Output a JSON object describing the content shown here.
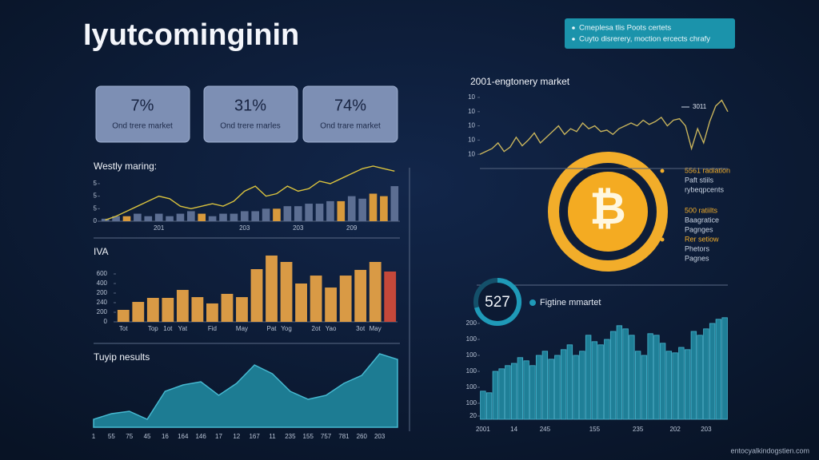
{
  "header": {
    "title": "Iyutcominginin",
    "notes": [
      "Cmeplesa tlis Poots certets",
      "Cuyto disrerery, moction ercects chrafy"
    ]
  },
  "kpis": [
    {
      "value": "7%",
      "label": "Ond trere market"
    },
    {
      "value": "31%",
      "label": "Ond trere rnarles"
    },
    {
      "value": "74%",
      "label": "Ond trare market"
    }
  ],
  "bitcoin": {
    "symbol": "₿",
    "notes": [
      {
        "title": "5561 radiation",
        "lines": [
          "Paft stiils",
          "rybeqpcents"
        ]
      },
      {
        "title": "500 ratiilts",
        "lines": [
          "Baagratice",
          "Pagnges"
        ]
      },
      {
        "title": "Rer setiow",
        "lines": [
          "Phetors",
          "Pagnes"
        ]
      }
    ]
  },
  "badge": {
    "value": "527",
    "label": "Figtine mmartet"
  },
  "footer": "entocyalkindogstien.com",
  "chart_data": [
    {
      "type": "combo",
      "title": "Westly maring:",
      "categories": [
        null,
        null,
        null,
        null,
        null,
        "201",
        null,
        null,
        null,
        null,
        null,
        null,
        null,
        "203",
        null,
        null,
        null,
        null,
        "203",
        null,
        null,
        null,
        null,
        "209",
        null,
        null,
        null,
        null
      ],
      "ylim": [
        0,
        22
      ],
      "yticks": [
        {
          "value": 15,
          "label": "5"
        },
        {
          "value": 10,
          "label": "5"
        },
        5,
        0
      ],
      "series": [
        {
          "type": "bar",
          "values": [
            1,
            2,
            2,
            3,
            2,
            3,
            2,
            3,
            4,
            3,
            2,
            3,
            3,
            4,
            4,
            5,
            5,
            6,
            6,
            7,
            7,
            8,
            8,
            10,
            9,
            11,
            10,
            14
          ],
          "colors": [
            "#5c6e92",
            "#5c6e92",
            "#d89a3c",
            "#5c6e92",
            "#5c6e92",
            "#5c6e92",
            "#5c6e92",
            "#5c6e92",
            "#5c6e92",
            "#d89a3c",
            "#5c6e92",
            "#5c6e92",
            "#5c6e92",
            "#5c6e92",
            "#5c6e92",
            "#5c6e92",
            "#d89a3c",
            "#5c6e92",
            "#5c6e92",
            "#5c6e92",
            "#5c6e92",
            "#5c6e92",
            "#d89a3c",
            "#5c6e92",
            "#5c6e92",
            "#d89a3c",
            "#d89a3c",
            "#5c6e92"
          ]
        },
        {
          "type": "line",
          "color": "#d9c23e",
          "values": [
            0.5,
            2,
            4,
            6,
            8,
            10,
            9,
            6,
            5,
            6,
            7,
            6,
            8,
            12,
            14,
            10,
            11,
            14,
            12,
            13,
            16,
            15,
            17,
            19,
            21,
            22,
            21,
            20
          ]
        }
      ]
    },
    {
      "type": "bar",
      "title": "IVA",
      "categories": [
        "Tot",
        null,
        "Top",
        "1ot",
        "Yat",
        null,
        "Fid",
        null,
        "May",
        null,
        "Pat",
        "Yog",
        null,
        "2ot",
        "Yao",
        null,
        "3ot",
        "May",
        null
      ],
      "values": [
        125,
        208,
        250,
        250,
        333,
        258,
        192,
        292,
        258,
        550,
        692,
        625,
        400,
        483,
        358,
        483,
        542,
        625,
        525
      ],
      "color": "#d99a45",
      "colors": [
        "#d99a45",
        "#d99a45",
        "#d99a45",
        "#d99a45",
        "#d99a45",
        "#d99a45",
        "#d99a45",
        "#d99a45",
        "#d99a45",
        "#d99a45",
        "#d99a45",
        "#d99a45",
        "#d99a45",
        "#d99a45",
        "#d99a45",
        "#d99a45",
        "#d99a45",
        "#d99a45",
        "#c5483a"
      ],
      "ylim": [
        0,
        700
      ],
      "yticks": [
        {
          "value": 500,
          "label": "600"
        },
        400,
        {
          "value": 300,
          "label": "200"
        },
        {
          "value": 200,
          "label": "240"
        },
        {
          "value": 100,
          "label": "200"
        },
        0
      ]
    },
    {
      "type": "area",
      "title": "Tuyip nesults",
      "categories": [
        "1",
        "55",
        "75",
        "45",
        "16",
        "164",
        "146",
        "17",
        "12",
        "167",
        "11",
        "235",
        "155",
        "757",
        "781",
        "260",
        "203",
        null
      ],
      "values": [
        10,
        17,
        20,
        10,
        45,
        53,
        57,
        40,
        55,
        78,
        67,
        45,
        35,
        40,
        55,
        65,
        92,
        85
      ],
      "color": "#1d7c93",
      "ylim": [
        0,
        100
      ]
    },
    {
      "type": "line",
      "title": "2001-engtonery market",
      "annotation": "3011",
      "values": [
        10,
        12,
        14,
        18,
        12,
        15,
        22,
        16,
        20,
        25,
        18,
        22,
        26,
        30,
        24,
        28,
        26,
        32,
        28,
        30,
        26,
        27,
        24,
        28,
        30,
        32,
        30,
        34,
        31,
        33,
        36,
        30,
        34,
        35,
        30,
        14,
        28,
        18,
        33,
        44,
        48,
        40
      ],
      "color": "#c8b45c",
      "ylim": [
        0,
        50
      ],
      "yticks": [
        {
          "value": 50,
          "label": "10"
        },
        {
          "value": 40,
          "label": "10"
        },
        {
          "value": 30,
          "label": "10"
        },
        {
          "value": 20,
          "label": "10"
        },
        10
      ]
    },
    {
      "type": "bar",
      "categories": [
        "2001",
        null,
        null,
        null,
        null,
        "14",
        null,
        null,
        null,
        null,
        "245",
        null,
        null,
        null,
        null,
        null,
        null,
        null,
        "155",
        null,
        null,
        null,
        null,
        null,
        null,
        "235",
        null,
        null,
        null,
        null,
        null,
        "202",
        null,
        null,
        null,
        null,
        "203",
        null,
        null,
        null
      ],
      "values": [
        88,
        83,
        150,
        158,
        168,
        175,
        193,
        183,
        168,
        200,
        213,
        188,
        200,
        218,
        233,
        200,
        213,
        263,
        243,
        233,
        250,
        275,
        293,
        283,
        263,
        213,
        200,
        268,
        263,
        238,
        213,
        208,
        225,
        218,
        275,
        263,
        283,
        300,
        313,
        318
      ],
      "color": "#1f7f97",
      "ylim": [
        0,
        320
      ],
      "yticks": [
        {
          "value": 300,
          "label": "200"
        },
        {
          "value": 250,
          "label": "100"
        },
        {
          "value": 200,
          "label": "100"
        },
        {
          "value": 150,
          "label": "100"
        },
        100,
        {
          "value": 50,
          "label": "100"
        },
        {
          "value": 10,
          "label": "20"
        }
      ]
    }
  ]
}
